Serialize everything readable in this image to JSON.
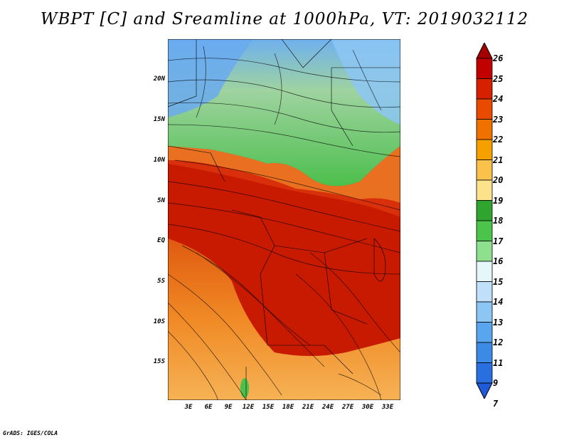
{
  "title": "WBPT [C] and Sreamline at 1000hPa, VT: 2019032112",
  "footer": "GrADS: IGES/COLA",
  "lat_ticks": [
    "20N",
    "15N",
    "10N",
    "5N",
    "EQ",
    "5S",
    "10S",
    "15S"
  ],
  "lon_ticks": [
    "3E",
    "6E",
    "9E",
    "12E",
    "15E",
    "18E",
    "21E",
    "24E",
    "27E",
    "30E",
    "33E"
  ],
  "colorbar": {
    "levels": [
      "26",
      "25",
      "24",
      "23",
      "22",
      "21",
      "20",
      "19",
      "18",
      "17",
      "16",
      "15",
      "14",
      "13",
      "12",
      "11",
      "9",
      "7"
    ],
    "colors": [
      "#a50000",
      "#c10000",
      "#d62000",
      "#e84a00",
      "#f07000",
      "#f6a000",
      "#fbc24b",
      "#fce28a",
      "#2fa52f",
      "#4cc44c",
      "#8ee08e",
      "#e6f7f9",
      "#bfe0f8",
      "#8cc6f4",
      "#5aa6ee",
      "#3b8ae6",
      "#2a6fe0",
      "#1f5bd6"
    ]
  },
  "colors": {
    "hot": "#c81a00",
    "warm": "#e85a10",
    "orange": "#f3a540",
    "yellow": "#f8d48a",
    "green": "#5bc25b",
    "lightgreen": "#a4e29a",
    "blue": "#6fb0ee"
  }
}
